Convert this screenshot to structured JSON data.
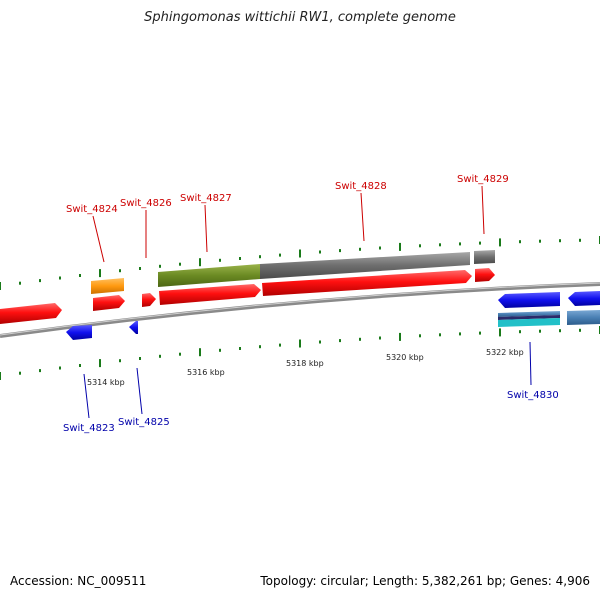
{
  "title": "Sphingomonas wittichii RW1, complete genome",
  "footer": {
    "accession": "Accession: NC_009511",
    "summary": "Topology: circular; Length: 5,382,261 bp; Genes: 4,906"
  },
  "colors": {
    "forward_label": "#cc0000",
    "reverse_label": "#0000aa",
    "gc_tick": "#1a7a1a",
    "backbone": "#8a8a8a"
  },
  "ticks": [
    "5314 kbp",
    "5316 kbp",
    "5318 kbp",
    "5320 kbp",
    "5322 kbp"
  ],
  "genes_top": [
    "Swit_4824",
    "Swit_4826",
    "Swit_4827",
    "Swit_4828",
    "Swit_4829"
  ],
  "genes_bottom": [
    "Swit_4823",
    "Swit_4825",
    "Swit_4830"
  ]
}
